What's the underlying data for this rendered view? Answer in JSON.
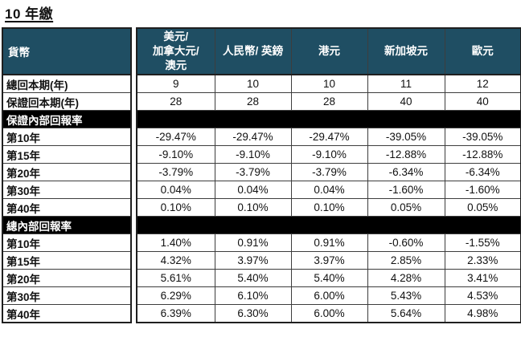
{
  "page_title": "10 年繳",
  "colors": {
    "header_bg": "#1f4e63",
    "section_bg": "#000000",
    "header_text": "#ffffff",
    "body_text": "#111111"
  },
  "table": {
    "corner_header": "貨幣",
    "currency_columns": [
      "美元/\n加拿大元/\n澳元",
      "人民幣/ 英鎊",
      "港元",
      "新加坡元",
      "歐元"
    ],
    "rows": [
      {
        "type": "data",
        "label": "總回本期(年)",
        "values": [
          "9",
          "10",
          "10",
          "11",
          "12"
        ]
      },
      {
        "type": "data",
        "label": "保證回本期(年)",
        "values": [
          "28",
          "28",
          "28",
          "40",
          "40"
        ]
      },
      {
        "type": "section",
        "label": "保證內部回報率",
        "values": []
      },
      {
        "type": "data",
        "label": "第10年",
        "values": [
          "-29.47%",
          "-29.47%",
          "-29.47%",
          "-39.05%",
          "-39.05%"
        ]
      },
      {
        "type": "data",
        "label": "第15年",
        "values": [
          "-9.10%",
          "-9.10%",
          "-9.10%",
          "-12.88%",
          "-12.88%"
        ]
      },
      {
        "type": "data",
        "label": "第20年",
        "values": [
          "-3.79%",
          "-3.79%",
          "-3.79%",
          "-6.34%",
          "-6.34%"
        ]
      },
      {
        "type": "data",
        "label": "第30年",
        "values": [
          "0.04%",
          "0.04%",
          "0.04%",
          "-1.60%",
          "-1.60%"
        ]
      },
      {
        "type": "data",
        "label": "第40年",
        "values": [
          "0.10%",
          "0.10%",
          "0.10%",
          "0.05%",
          "0.05%"
        ]
      },
      {
        "type": "section",
        "label": "總內部回報率",
        "values": []
      },
      {
        "type": "data",
        "label": "第10年",
        "values": [
          "1.40%",
          "0.91%",
          "0.91%",
          "-0.60%",
          "-1.55%"
        ]
      },
      {
        "type": "data",
        "label": "第15年",
        "values": [
          "4.32%",
          "3.97%",
          "3.97%",
          "2.85%",
          "2.33%"
        ]
      },
      {
        "type": "data",
        "label": "第20年",
        "values": [
          "5.61%",
          "5.40%",
          "5.40%",
          "4.28%",
          "3.41%"
        ]
      },
      {
        "type": "data",
        "label": "第30年",
        "values": [
          "6.29%",
          "6.10%",
          "6.00%",
          "5.43%",
          "4.53%"
        ]
      },
      {
        "type": "data",
        "label": "第40年",
        "values": [
          "6.39%",
          "6.30%",
          "6.00%",
          "5.64%",
          "4.98%"
        ]
      }
    ]
  }
}
